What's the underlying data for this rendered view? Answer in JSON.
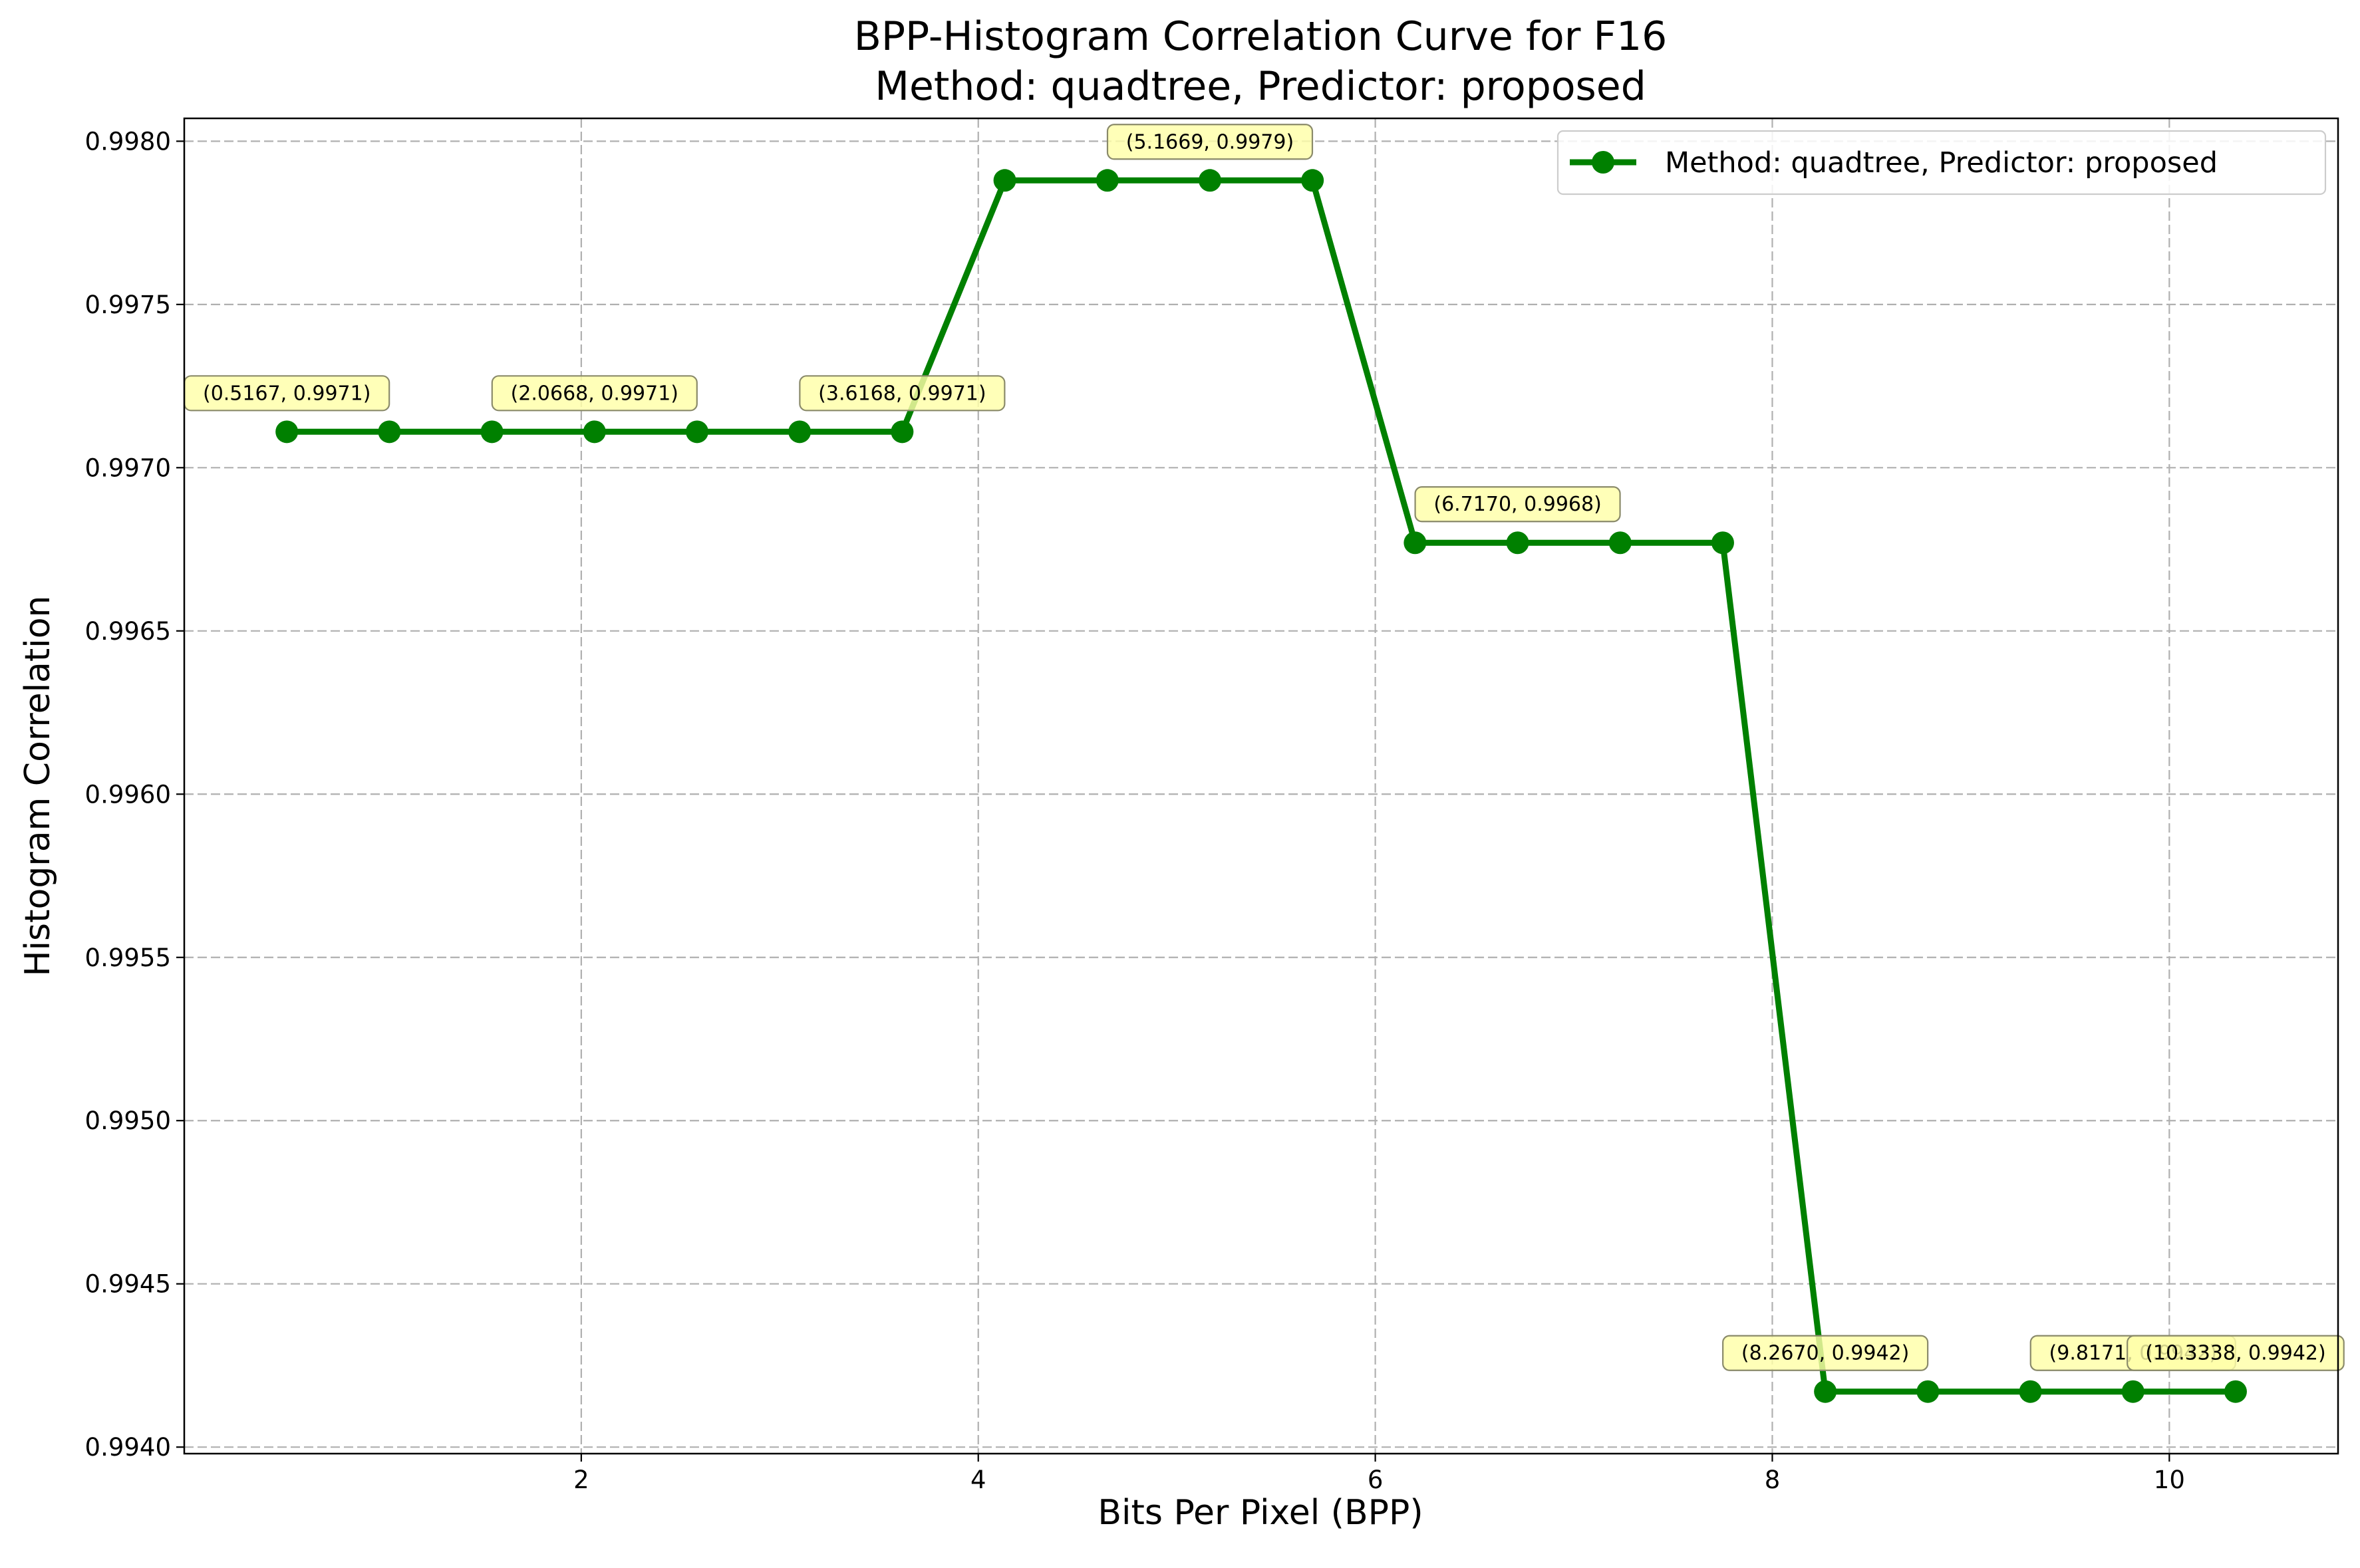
{
  "chart_data": {
    "type": "line",
    "title_line1": "BPP-Histogram Correlation Curve for F16",
    "title_line2": "Method: quadtree, Predictor: proposed",
    "xlabel": "Bits Per Pixel (BPP)",
    "ylabel": "Histogram Correlation",
    "xlim": [
      0.0,
      10.85
    ],
    "ylim": [
      0.99398,
      0.99807
    ],
    "x_ticks": [
      2,
      4,
      6,
      8,
      10
    ],
    "x_tick_labels": [
      "2",
      "4",
      "6",
      "8",
      "10"
    ],
    "y_ticks": [
      0.994,
      0.9945,
      0.995,
      0.9955,
      0.996,
      0.9965,
      0.997,
      0.9975,
      0.998
    ],
    "y_tick_labels": [
      "0.9940",
      "0.9945",
      "0.9950",
      "0.9955",
      "0.9960",
      "0.9965",
      "0.9970",
      "0.9975",
      "0.9980"
    ],
    "grid": true,
    "legend_position": "upper right",
    "series": [
      {
        "name": "Method: quadtree, Predictor: proposed",
        "color": "#008000",
        "marker": "circle",
        "x": [
          0.5167,
          1.0334,
          1.5501,
          2.0668,
          2.5835,
          3.1001,
          3.6168,
          4.1335,
          4.6502,
          5.1669,
          5.6836,
          6.2003,
          6.717,
          7.2337,
          7.7504,
          8.267,
          8.7837,
          9.3004,
          9.8171,
          10.3338
        ],
        "y": [
          0.99711,
          0.99711,
          0.99711,
          0.99711,
          0.99711,
          0.99711,
          0.99711,
          0.99788,
          0.99788,
          0.99788,
          0.99788,
          0.99677,
          0.99677,
          0.99677,
          0.99677,
          0.99417,
          0.99417,
          0.99417,
          0.99417,
          0.99417
        ]
      }
    ],
    "annotations": [
      {
        "text": "(0.5167, 0.9971)",
        "x": 0.5167,
        "y": 0.99711
      },
      {
        "text": "(2.0668, 0.9971)",
        "x": 2.0668,
        "y": 0.99711
      },
      {
        "text": "(3.6168, 0.9971)",
        "x": 3.6168,
        "y": 0.99711
      },
      {
        "text": "(5.1669, 0.9979)",
        "x": 5.1669,
        "y": 0.99788
      },
      {
        "text": "(6.7170, 0.9968)",
        "x": 6.717,
        "y": 0.99677
      },
      {
        "text": "(8.2670, 0.9942)",
        "x": 8.267,
        "y": 0.99417
      },
      {
        "text": "(9.8171, 0.9942)",
        "x": 9.8171,
        "y": 0.99417
      },
      {
        "text": "(10.3338, 0.9942)",
        "x": 10.3338,
        "y": 0.99417
      }
    ]
  }
}
